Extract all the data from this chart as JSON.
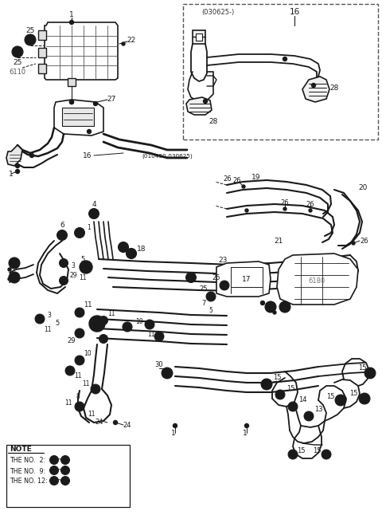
{
  "bg_color": "#ffffff",
  "line_color": "#1a1a1a",
  "gray_color": "#666666",
  "figsize": [
    4.8,
    6.46
  ],
  "dpi": 100,
  "note_lines": [
    "THE NO.  2:  ①~⑦",
    "THE NO.  9:  ⑧~⑩",
    "THE NO. 12:  ⑪~⑭"
  ]
}
